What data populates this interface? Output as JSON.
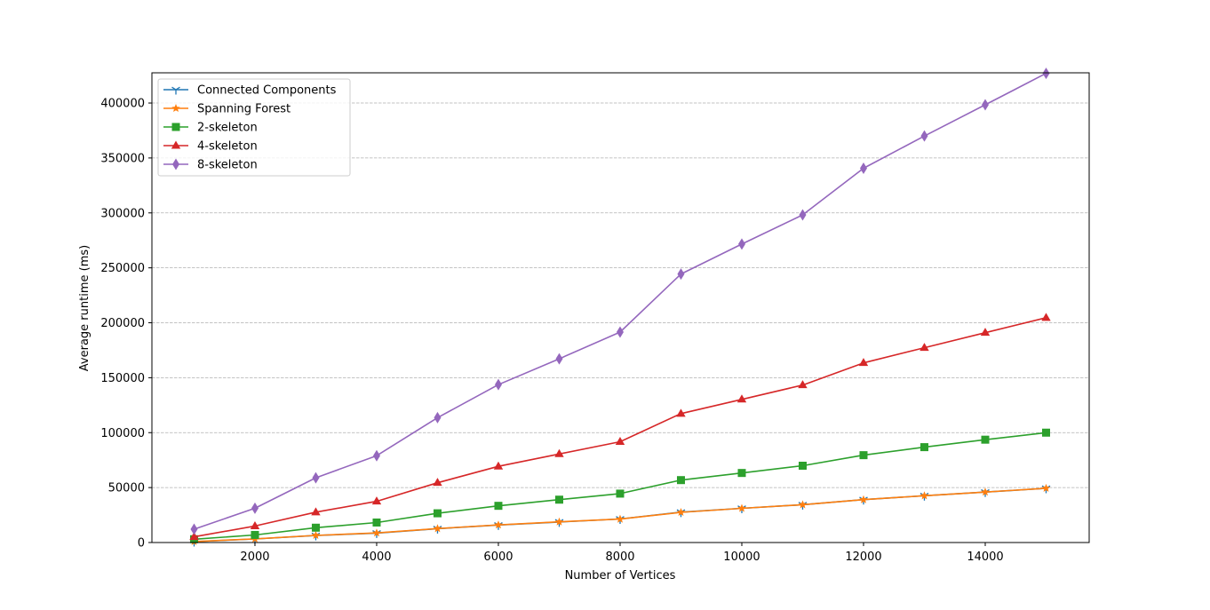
{
  "chart_data": {
    "type": "line",
    "title": "",
    "xlabel": "Number of Vertices",
    "ylabel": "Average runtime (ms)",
    "xlim": [
      307,
      15708
    ],
    "ylim": [
      0,
      427500
    ],
    "xticks": [
      2000,
      4000,
      6000,
      8000,
      10000,
      12000,
      14000
    ],
    "yticks": [
      0,
      50000,
      100000,
      150000,
      200000,
      250000,
      300000,
      350000,
      400000
    ],
    "grid": {
      "axis": "y",
      "style": "dashed",
      "color": "#b0b0b0"
    },
    "legend_position": "upper left",
    "x": [
      1000,
      2000,
      3000,
      4000,
      5000,
      6000,
      7000,
      8000,
      9000,
      10000,
      11000,
      12000,
      13000,
      14000,
      15000
    ],
    "series": [
      {
        "name": "Connected Components",
        "color": "#1f77b4",
        "marker": "tri_down",
        "values": [
          800,
          3200,
          6400,
          8600,
          12600,
          15900,
          18700,
          21400,
          27600,
          31100,
          34400,
          39000,
          42600,
          45900,
          49300
        ]
      },
      {
        "name": "Spanning Forest",
        "color": "#ff7f0e",
        "marker": "star",
        "values": [
          900,
          3300,
          6500,
          8700,
          12700,
          16000,
          18800,
          21300,
          27500,
          31100,
          34400,
          39000,
          42600,
          45900,
          49400
        ]
      },
      {
        "name": "2-skeleton",
        "color": "#2ca02c",
        "marker": "square",
        "values": [
          3000,
          6900,
          13500,
          18200,
          26600,
          33400,
          39000,
          44500,
          56800,
          63300,
          69900,
          79500,
          86800,
          93600,
          100000
        ]
      },
      {
        "name": "4-skeleton",
        "color": "#d62728",
        "marker": "triangle",
        "values": [
          5200,
          15000,
          27600,
          37500,
          54400,
          69300,
          80600,
          91700,
          117300,
          130300,
          143300,
          163500,
          177300,
          191000,
          204600
        ]
      },
      {
        "name": "8-skeleton",
        "color": "#9467bd",
        "marker": "thin_diamond",
        "values": [
          12100,
          31200,
          58900,
          79000,
          113600,
          143700,
          167200,
          191500,
          244400,
          271600,
          298200,
          340600,
          370000,
          398400,
          427000
        ]
      }
    ]
  }
}
